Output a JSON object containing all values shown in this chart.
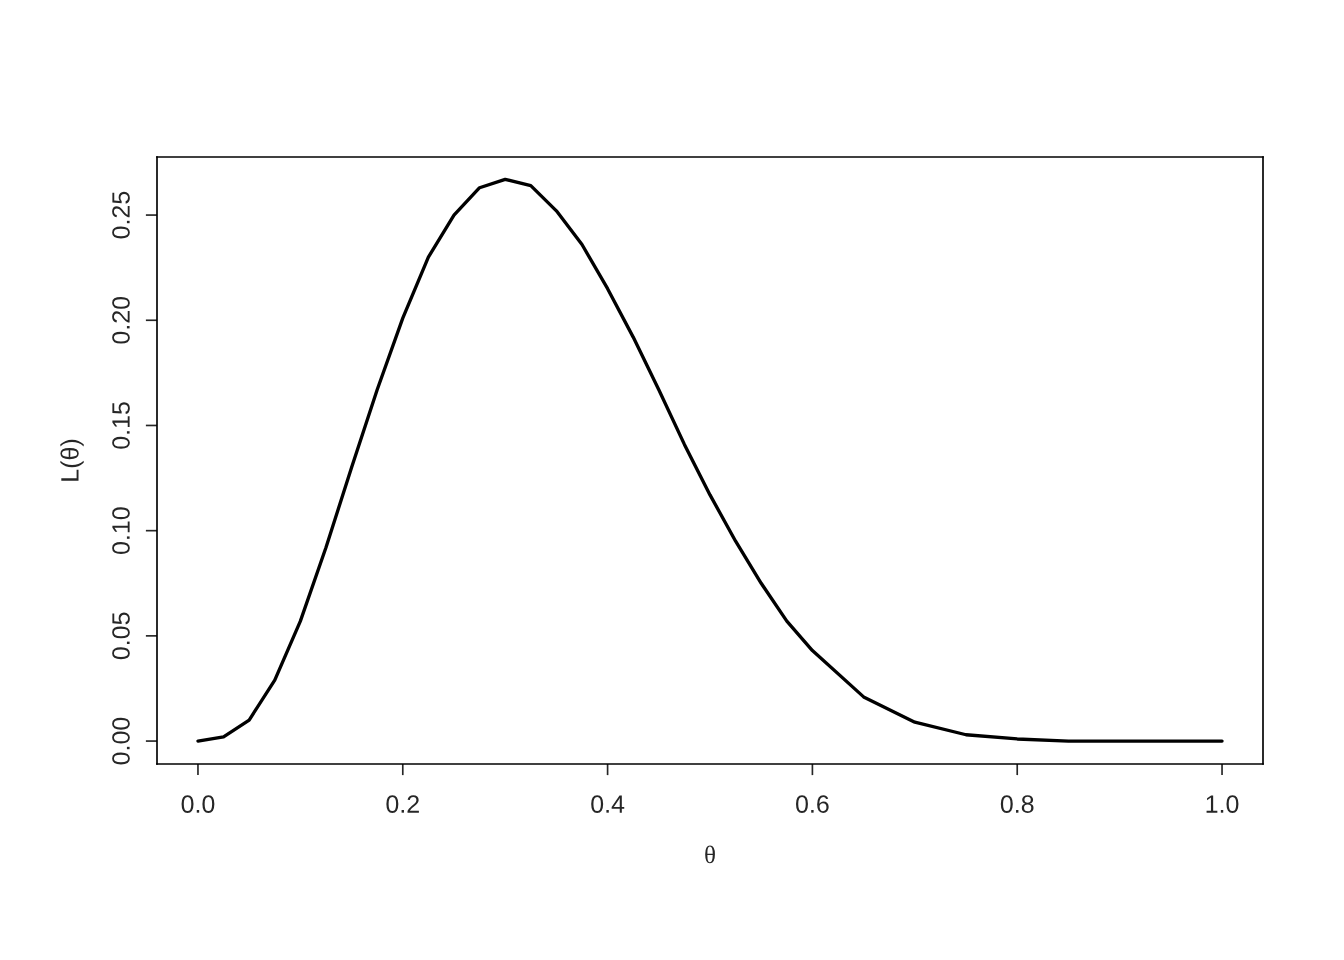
{
  "chart_data": {
    "type": "line",
    "xlabel": "θ",
    "ylabel": "L(θ)",
    "x": [
      0,
      0.025,
      0.05,
      0.075,
      0.1,
      0.125,
      0.15,
      0.175,
      0.2,
      0.225,
      0.25,
      0.275,
      0.3,
      0.325,
      0.35,
      0.375,
      0.4,
      0.425,
      0.45,
      0.475,
      0.5,
      0.525,
      0.55,
      0.575,
      0.6,
      0.65,
      0.7,
      0.75,
      0.8,
      0.85,
      0.9,
      0.95,
      1.0
    ],
    "series": [
      {
        "color": "#000000",
        "values": [
          0,
          0.002,
          0.01,
          0.029,
          0.057,
          0.092,
          0.13,
          0.167,
          0.201,
          0.23,
          0.25,
          0.263,
          0.267,
          0.264,
          0.252,
          0.236,
          0.215,
          0.192,
          0.167,
          0.141,
          0.117,
          0.095,
          0.075,
          0.057,
          0.043,
          0.021,
          0.009,
          0.003,
          0.001,
          0,
          0,
          0,
          0
        ]
      }
    ],
    "xlim": [
      -0.04,
      1.04
    ],
    "ylim": [
      -0.0109,
      0.2776
    ],
    "xticks": [
      {
        "value": 0,
        "label": "0.0"
      },
      0.2,
      0.4,
      0.6,
      0.8,
      {
        "value": 1,
        "label": "1.0"
      }
    ],
    "yticks": [
      {
        "value": 0,
        "label": "0.00"
      },
      0.05,
      {
        "value": 0.1,
        "label": "0.10"
      },
      0.15,
      {
        "value": 0.2,
        "label": "0.20"
      },
      0.25
    ],
    "grid": false,
    "marker": "none",
    "line_style": "solid"
  }
}
